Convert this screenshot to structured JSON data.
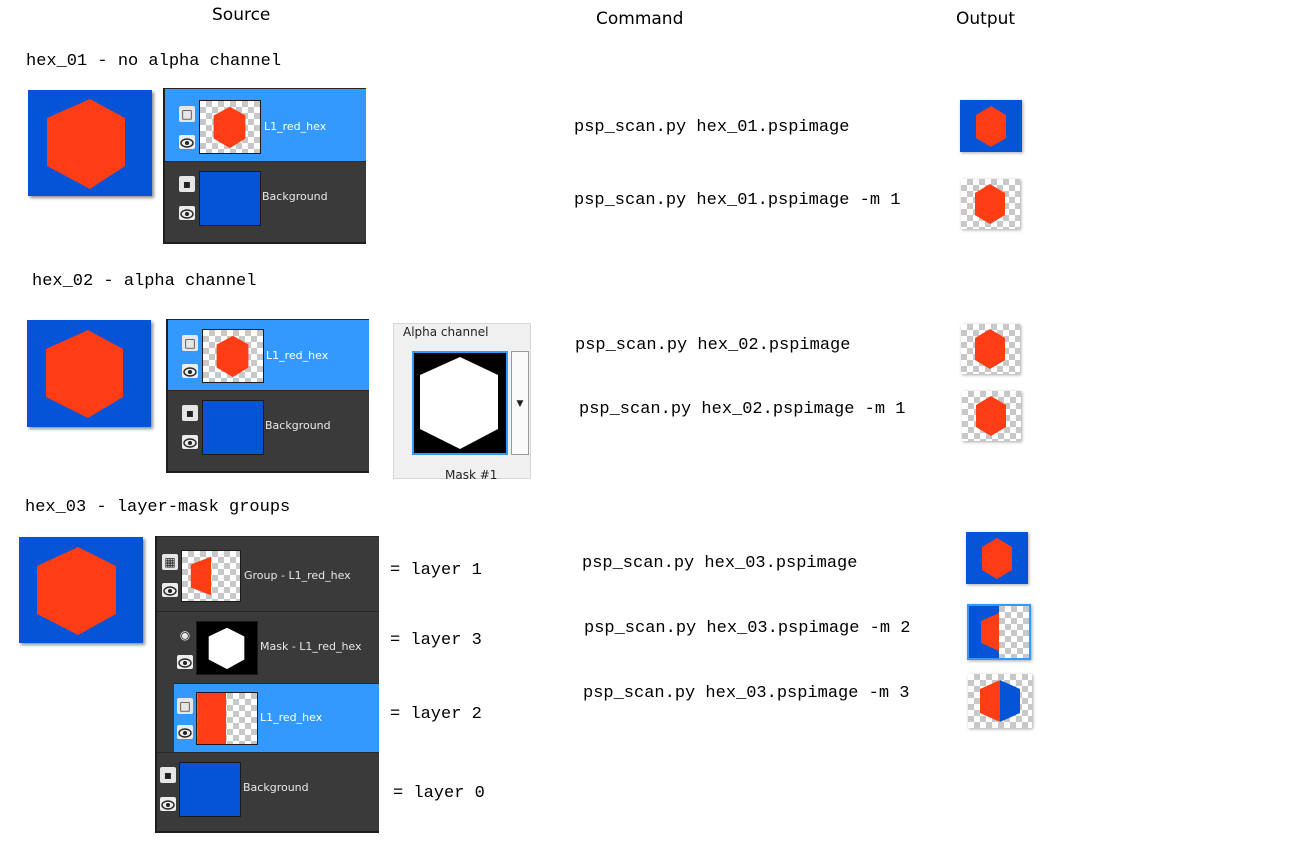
{
  "column_headers": {
    "source": "Source",
    "command": "Command",
    "output": "Output"
  },
  "colors": {
    "hex_fill": "#ff3d14",
    "background_blue": "#0553d6",
    "selection_blue": "#3399ff",
    "panel_dark": "#3a3a3a"
  },
  "sections": [
    {
      "title": "hex_01 - no alpha channel",
      "layers": [
        {
          "label": "L1_red_hex",
          "icon": "raster-layer-icon",
          "selected": true
        },
        {
          "label": "Background",
          "icon": "background-layer-icon",
          "selected": false
        }
      ],
      "commands": [
        "psp_scan.py hex_01.pspimage",
        "psp_scan.py hex_01.pspimage -m 1"
      ]
    },
    {
      "title": "hex_02 - alpha channel",
      "layers": [
        {
          "label": "L1_red_hex",
          "icon": "raster-layer-icon",
          "selected": true
        },
        {
          "label": "Background",
          "icon": "background-layer-icon",
          "selected": false
        }
      ],
      "alpha_channel": {
        "title": "Alpha channel",
        "caption": "Mask #1"
      },
      "commands": [
        "psp_scan.py hex_02.pspimage",
        "psp_scan.py hex_02.pspimage -m 1"
      ]
    },
    {
      "title": "hex_03 - layer-mask groups",
      "layers": [
        {
          "label": "Group - L1_red_hex",
          "icon": "group-layer-icon",
          "selected": false,
          "equals": "= layer 1"
        },
        {
          "label": "Mask - L1_red_hex",
          "icon": "mask-layer-icon",
          "selected": false,
          "equals": "= layer 3"
        },
        {
          "label": "L1_red_hex",
          "icon": "raster-layer-icon",
          "selected": true,
          "equals": "= layer 2"
        },
        {
          "label": "Background",
          "icon": "background-layer-icon",
          "selected": false,
          "equals": "= layer 0"
        }
      ],
      "commands": [
        "psp_scan.py hex_03.pspimage",
        "psp_scan.py hex_03.pspimage -m 2",
        "psp_scan.py hex_03.pspimage -m 3"
      ]
    }
  ]
}
